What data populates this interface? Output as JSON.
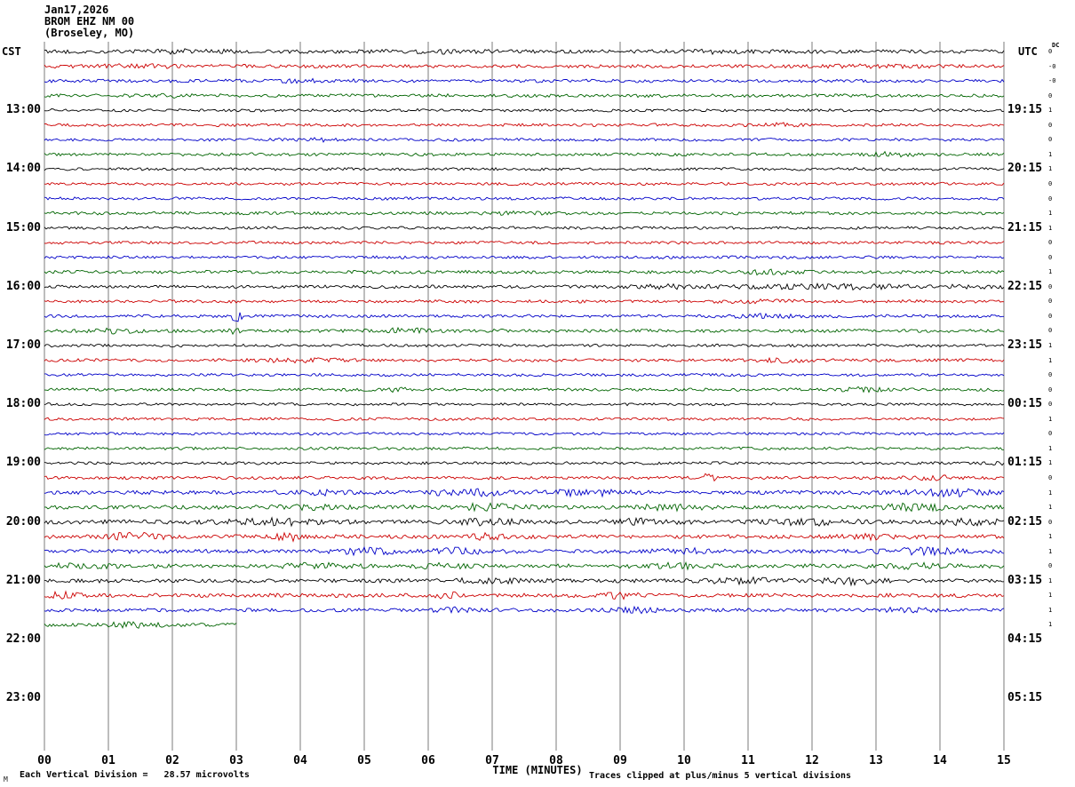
{
  "header": {
    "date": "Jan17,2026",
    "station": "BROM EHZ NM 00",
    "location": "(Broseley, MO)"
  },
  "corner_labels": {
    "left": "CST",
    "right": "UTC",
    "dc": "DC"
  },
  "footer": {
    "scale_note": "Each Vertical Division =   28.57 microvolts",
    "clip_note": "Traces clipped at plus/minus 5 vertical divisions",
    "corner_mark": "M"
  },
  "chart_data": {
    "type": "line",
    "title": "BROM EHZ NM 00 (Broseley, MO) helicorder Jan17,2026",
    "xlabel": "TIME (MINUTES)",
    "x_range_minutes": [
      0,
      15
    ],
    "x_ticks": [
      "00",
      "01",
      "02",
      "03",
      "04",
      "05",
      "06",
      "07",
      "08",
      "09",
      "10",
      "11",
      "12",
      "13",
      "14",
      "15"
    ],
    "left_time_labels": [
      "13:00",
      "14:00",
      "15:00",
      "16:00",
      "17:00",
      "18:00",
      "19:00",
      "20:00",
      "21:00",
      "22:00",
      "23:00"
    ],
    "right_time_labels": [
      "19:15",
      "20:15",
      "21:15",
      "22:15",
      "23:15",
      "00:15",
      "01:15",
      "02:15",
      "03:15",
      "04:15",
      "05:15"
    ],
    "label_row_start": 4,
    "label_row_step": 4,
    "microvolts_per_division": 28.57,
    "clip_divisions": 5,
    "palette": {
      "black": "#000000",
      "red": "#cc0000",
      "blue": "#0000c8",
      "green": "#006400"
    },
    "rows": [
      {
        "time": "12:00",
        "color": "black",
        "amp": 2.0,
        "dc": "0",
        "span": 1,
        "bursts": [
          [
            2.3,
            0.4,
            1.5
          ],
          [
            6.0,
            0.5,
            1.0
          ],
          [
            10.5,
            0.5,
            1.0
          ]
        ]
      },
      {
        "time": "12:15",
        "color": "red",
        "amp": 1.9,
        "dc": "-0",
        "span": 1,
        "bursts": [
          [
            1.5,
            0.4,
            1.2
          ],
          [
            13.0,
            0.5,
            1.0
          ]
        ]
      },
      {
        "time": "12:30",
        "color": "blue",
        "amp": 1.7,
        "dc": "-0",
        "span": 1,
        "bursts": [
          [
            4.0,
            0.5,
            1.0
          ]
        ]
      },
      {
        "time": "12:45",
        "color": "green",
        "amp": 1.7,
        "dc": "0",
        "span": 1,
        "bursts": [
          [
            2.0,
            0.4,
            1.2
          ]
        ]
      },
      {
        "time": "13:00",
        "color": "black",
        "amp": 1.5,
        "dc": "1",
        "span": 1,
        "bursts": []
      },
      {
        "time": "13:15",
        "color": "red",
        "amp": 1.5,
        "dc": "0",
        "span": 1,
        "bursts": [
          [
            11.5,
            0.3,
            1.2
          ]
        ]
      },
      {
        "time": "13:30",
        "color": "blue",
        "amp": 1.5,
        "dc": "0",
        "span": 1,
        "bursts": [
          [
            4.2,
            0.3,
            1.2
          ]
        ]
      },
      {
        "time": "13:45",
        "color": "green",
        "amp": 1.6,
        "dc": "1",
        "span": 1,
        "bursts": [
          [
            13.2,
            0.3,
            1.5
          ]
        ]
      },
      {
        "time": "14:00",
        "color": "black",
        "amp": 1.5,
        "dc": "1",
        "span": 1,
        "bursts": []
      },
      {
        "time": "14:15",
        "color": "red",
        "amp": 1.5,
        "dc": "0",
        "span": 1,
        "bursts": []
      },
      {
        "time": "14:30",
        "color": "blue",
        "amp": 1.5,
        "dc": "0",
        "span": 1,
        "bursts": []
      },
      {
        "time": "14:45",
        "color": "green",
        "amp": 1.6,
        "dc": "1",
        "span": 1,
        "bursts": [
          [
            7.5,
            0.4,
            1.0
          ]
        ]
      },
      {
        "time": "15:00",
        "color": "black",
        "amp": 1.5,
        "dc": "1",
        "span": 1,
        "bursts": []
      },
      {
        "time": "15:15",
        "color": "red",
        "amp": 1.5,
        "dc": "0",
        "span": 1,
        "bursts": []
      },
      {
        "time": "15:30",
        "color": "blue",
        "amp": 1.5,
        "dc": "0",
        "span": 1,
        "bursts": []
      },
      {
        "time": "15:45",
        "color": "green",
        "amp": 1.7,
        "dc": "1",
        "span": 1,
        "bursts": [
          [
            11.4,
            0.3,
            2.2
          ]
        ]
      },
      {
        "time": "16:00",
        "color": "black",
        "amp": 1.7,
        "dc": "0",
        "span": 1,
        "bursts": [
          [
            12.5,
            1.6,
            1.8
          ],
          [
            9.6,
            0.3,
            1.5
          ]
        ]
      },
      {
        "time": "16:15",
        "color": "red",
        "amp": 1.6,
        "dc": "0",
        "span": 1,
        "bursts": [
          [
            11.2,
            0.4,
            1.2
          ]
        ]
      },
      {
        "time": "16:30",
        "color": "blue",
        "amp": 1.6,
        "dc": "0",
        "span": 1,
        "bursts": [
          [
            3.0,
            0.05,
            7.0
          ],
          [
            11.3,
            0.4,
            1.5
          ]
        ]
      },
      {
        "time": "16:45",
        "color": "green",
        "amp": 1.8,
        "dc": "0",
        "span": 1,
        "bursts": [
          [
            1.1,
            0.3,
            2.0
          ],
          [
            3.0,
            0.06,
            4.0
          ],
          [
            5.7,
            0.25,
            2.2
          ]
        ]
      },
      {
        "time": "17:00",
        "color": "black",
        "amp": 1.5,
        "dc": "1",
        "span": 1,
        "bursts": []
      },
      {
        "time": "17:15",
        "color": "red",
        "amp": 1.6,
        "dc": "1",
        "span": 1,
        "bursts": [
          [
            4.0,
            0.5,
            1.5
          ],
          [
            11.6,
            0.3,
            1.8
          ]
        ]
      },
      {
        "time": "17:30",
        "color": "blue",
        "amp": 1.5,
        "dc": "0",
        "span": 1,
        "bursts": []
      },
      {
        "time": "17:45",
        "color": "green",
        "amp": 1.6,
        "dc": "0",
        "span": 1,
        "bursts": [
          [
            5.6,
            0.15,
            2.8
          ],
          [
            12.8,
            0.2,
            2.6
          ]
        ]
      },
      {
        "time": "18:00",
        "color": "black",
        "amp": 1.4,
        "dc": "0",
        "span": 1,
        "bursts": []
      },
      {
        "time": "18:15",
        "color": "red",
        "amp": 1.5,
        "dc": "1",
        "span": 1,
        "bursts": []
      },
      {
        "time": "18:30",
        "color": "blue",
        "amp": 1.4,
        "dc": "0",
        "span": 1,
        "bursts": []
      },
      {
        "time": "18:45",
        "color": "green",
        "amp": 1.5,
        "dc": "1",
        "span": 1,
        "bursts": []
      },
      {
        "time": "19:00",
        "color": "black",
        "amp": 1.5,
        "dc": "1",
        "span": 1,
        "bursts": [
          [
            14.8,
            0.2,
            1.2
          ]
        ]
      },
      {
        "time": "19:15",
        "color": "red",
        "amp": 1.7,
        "dc": "0",
        "span": 1,
        "bursts": [
          [
            10.4,
            0.07,
            5.0
          ],
          [
            13.9,
            0.3,
            1.8
          ]
        ]
      },
      {
        "time": "19:30",
        "color": "blue",
        "amp": 2.2,
        "dc": "1",
        "span": 1,
        "bursts": [
          [
            4.5,
            0.3,
            1.8
          ],
          [
            6.6,
            0.4,
            3.0
          ],
          [
            8.5,
            0.4,
            2.6
          ],
          [
            14.2,
            0.4,
            2.8
          ]
        ]
      },
      {
        "time": "19:45",
        "color": "green",
        "amp": 2.1,
        "dc": "1",
        "span": 1,
        "bursts": [
          [
            4.3,
            0.4,
            1.6
          ],
          [
            6.8,
            0.5,
            2.6
          ],
          [
            9.8,
            0.4,
            2.2
          ],
          [
            13.6,
            0.4,
            2.6
          ]
        ]
      },
      {
        "time": "20:00",
        "color": "black",
        "amp": 2.2,
        "dc": "0",
        "span": 1,
        "bursts": [
          [
            3.6,
            0.6,
            2.6
          ],
          [
            6.9,
            0.3,
            2.8
          ],
          [
            9.3,
            0.3,
            2.2
          ],
          [
            12.0,
            0.5,
            2.2
          ],
          [
            14.5,
            0.3,
            2.6
          ]
        ]
      },
      {
        "time": "20:15",
        "color": "red",
        "amp": 2.1,
        "dc": "1",
        "span": 1,
        "bursts": [
          [
            1.4,
            0.3,
            3.2
          ],
          [
            3.8,
            0.15,
            3.6
          ],
          [
            6.9,
            0.2,
            2.6
          ],
          [
            13.0,
            0.3,
            2.2
          ]
        ]
      },
      {
        "time": "20:30",
        "color": "blue",
        "amp": 2.1,
        "dc": "1",
        "span": 1,
        "bursts": [
          [
            5.0,
            0.4,
            2.6
          ],
          [
            6.5,
            0.3,
            2.6
          ],
          [
            9.9,
            0.3,
            2.6
          ],
          [
            13.7,
            0.4,
            3.0
          ]
        ]
      },
      {
        "time": "20:45",
        "color": "green",
        "amp": 2.1,
        "dc": "0",
        "span": 1,
        "bursts": [
          [
            0.6,
            0.3,
            2.6
          ],
          [
            4.3,
            0.4,
            2.2
          ],
          [
            6.2,
            0.3,
            2.2
          ],
          [
            9.9,
            0.4,
            2.2
          ],
          [
            13.6,
            0.3,
            2.6
          ]
        ]
      },
      {
        "time": "21:00",
        "color": "black",
        "amp": 2.1,
        "dc": "1",
        "span": 1,
        "bursts": [
          [
            6.9,
            0.3,
            2.8
          ],
          [
            10.9,
            0.4,
            2.2
          ],
          [
            12.6,
            0.3,
            2.6
          ]
        ]
      },
      {
        "time": "21:15",
        "color": "red",
        "amp": 2.1,
        "dc": "1",
        "span": 1,
        "bursts": [
          [
            0.3,
            0.2,
            3.2
          ],
          [
            6.3,
            0.2,
            2.6
          ],
          [
            9.0,
            0.2,
            2.2
          ]
        ]
      },
      {
        "time": "21:30",
        "color": "blue",
        "amp": 1.9,
        "dc": "1",
        "span": 1,
        "bursts": [
          [
            6.4,
            0.2,
            2.2
          ],
          [
            9.3,
            0.3,
            2.2
          ],
          [
            13.5,
            0.3,
            1.8
          ]
        ]
      },
      {
        "time": "21:45",
        "color": "green",
        "amp": 1.9,
        "dc": "1",
        "span": 0.2,
        "bursts": [
          [
            1.4,
            0.3,
            2.2
          ]
        ]
      }
    ]
  }
}
